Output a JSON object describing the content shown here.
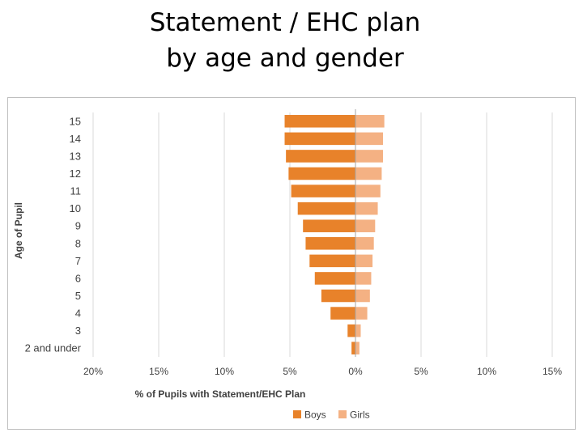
{
  "slide": {
    "title_line1": "Statement / EHC plan",
    "title_line2": "by age and gender"
  },
  "chart_data": {
    "type": "bar",
    "orientation": "horizontal",
    "layout": "population-pyramid",
    "categories": [
      "2 and under",
      "3",
      "4",
      "5",
      "6",
      "7",
      "8",
      "9",
      "10",
      "11",
      "12",
      "13",
      "14",
      "15"
    ],
    "series": [
      {
        "name": "Boys",
        "color": "#e8822a",
        "side": "left",
        "values": [
          0.3,
          0.6,
          1.9,
          2.6,
          3.1,
          3.5,
          3.8,
          4.0,
          4.4,
          4.9,
          5.1,
          5.3,
          5.4,
          5.4
        ]
      },
      {
        "name": "Girls",
        "color": "#f4b183",
        "side": "right",
        "values": [
          0.3,
          0.4,
          0.9,
          1.1,
          1.2,
          1.3,
          1.4,
          1.5,
          1.7,
          1.9,
          2.0,
          2.1,
          2.1,
          2.2
        ]
      }
    ],
    "xlabel": "% of Pupils with Statement/EHC Plan",
    "ylabel": "Age of Pupil",
    "xticks": [
      -20,
      -15,
      -10,
      -5,
      0,
      5,
      10,
      15
    ],
    "xtick_labels": [
      "20%",
      "15%",
      "10%",
      "5%",
      "0%",
      "5%",
      "10%",
      "15%"
    ],
    "xlim": [
      -20,
      15
    ],
    "grid": "vertical",
    "legend_position": "bottom"
  }
}
